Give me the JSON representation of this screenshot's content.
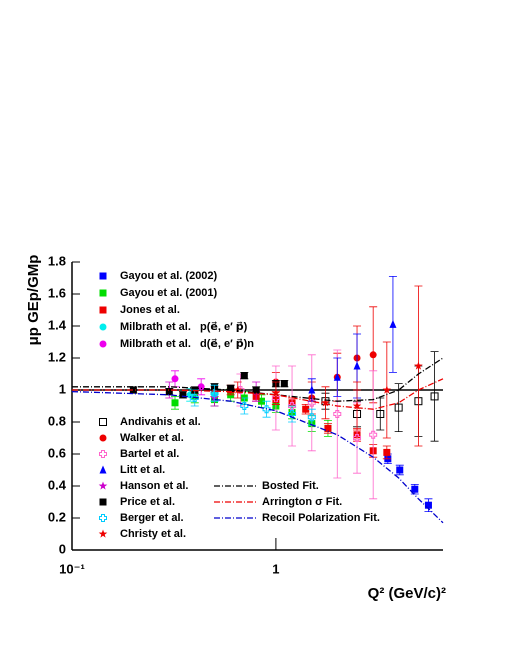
{
  "chart_data": {
    "type": "scatter",
    "xlabel": "Q² (GeV/c)²",
    "ylabel": "μp GEp/GMp",
    "xlog": true,
    "xlim": [
      0.1,
      6.6
    ],
    "ylim": [
      0,
      1.8
    ],
    "xticks": [
      {
        "value": 0.1,
        "label": "10⁻¹"
      },
      1
    ],
    "yticks": [
      0,
      0.2,
      0.4,
      0.6,
      0.8,
      1,
      1.2,
      1.4,
      1.6,
      1.8
    ],
    "reference_line": 1,
    "series": [
      {
        "name": "Gayou et al. (2002)",
        "color": "#0000ff",
        "marker": "square",
        "x": [
          3.54,
          4.05,
          4.8,
          5.6
        ],
        "values": [
          0.57,
          0.5,
          0.38,
          0.28
        ],
        "errors": [
          0.03,
          0.03,
          0.03,
          0.04
        ]
      },
      {
        "name": "Gayou et al. (2001)",
        "color": "#00dd00",
        "marker": "square",
        "x": [
          0.32,
          0.4,
          0.5,
          0.6,
          0.7,
          0.85,
          1.0,
          1.2,
          1.5,
          1.8
        ],
        "values": [
          0.92,
          0.96,
          0.94,
          0.97,
          0.95,
          0.93,
          0.9,
          0.86,
          0.79,
          0.76
        ],
        "errors": [
          0.04,
          0.04,
          0.04,
          0.04,
          0.04,
          0.04,
          0.04,
          0.04,
          0.05,
          0.05
        ]
      },
      {
        "name": "Jones et al.",
        "color": "#ee0000",
        "marker": "square",
        "x": [
          0.5,
          0.6,
          0.8,
          1.0,
          1.2,
          1.4,
          1.8,
          2.5,
          3.0,
          3.5
        ],
        "values": [
          0.99,
          1.0,
          0.96,
          0.94,
          0.92,
          0.88,
          0.76,
          0.72,
          0.62,
          0.61
        ],
        "errors": [
          0.03,
          0.03,
          0.03,
          0.03,
          0.03,
          0.03,
          0.03,
          0.04,
          0.04,
          0.04
        ]
      },
      {
        "name": "Milbrath et al.",
        "reaction": "p(e⃗, e′ p⃗)",
        "color": "#00eeee",
        "marker": "circle",
        "x": [
          0.38,
          0.5
        ],
        "values": [
          0.97,
          0.97
        ],
        "errors": [
          0.04,
          0.04
        ]
      },
      {
        "name": "Milbrath et al.",
        "reaction": "d(e⃗, e′ p⃗)n",
        "color": "#ee00ee",
        "marker": "circle",
        "x": [
          0.32,
          0.43
        ],
        "values": [
          1.07,
          1.02
        ],
        "errors": [
          0.05,
          0.05
        ]
      },
      {
        "name": "Andivahis et al.",
        "color": "#000000",
        "marker": "open-square",
        "x": [
          1.75,
          2.5,
          3.25,
          4.0,
          5.0,
          6.0
        ],
        "values": [
          0.93,
          0.85,
          0.85,
          0.89,
          0.93,
          0.96
        ],
        "errors": [
          0.05,
          0.08,
          0.1,
          0.15,
          0.22,
          0.28
        ]
      },
      {
        "name": "Walker et al.",
        "color": "#ee0000",
        "marker": "circle",
        "x": [
          1.0,
          1.5,
          2.0,
          2.5,
          3.0
        ],
        "values": [
          1.05,
          0.95,
          1.08,
          1.2,
          1.22
        ],
        "errors": [
          0.06,
          0.1,
          0.15,
          0.2,
          0.3
        ]
      },
      {
        "name": "Bartel et al.",
        "color": "#ff66cc",
        "marker": "open-cross",
        "x": [
          0.67,
          1.0,
          1.2,
          1.5,
          2.0,
          2.5,
          3.0
        ],
        "values": [
          1.0,
          0.95,
          0.9,
          0.92,
          0.85,
          0.7,
          0.72
        ],
        "errors": [
          0.1,
          0.2,
          0.25,
          0.3,
          0.4,
          0.22,
          0.4
        ]
      },
      {
        "name": "Litt et al.",
        "color": "#0000ff",
        "marker": "triangle",
        "x": [
          1.5,
          2.0,
          2.5,
          3.75
        ],
        "values": [
          1.0,
          1.08,
          1.15,
          1.41
        ],
        "errors": [
          0.07,
          0.12,
          0.2,
          0.3
        ]
      },
      {
        "name": "Hanson et al.",
        "color": "#cc00cc",
        "marker": "star",
        "x": [
          0.3,
          0.5,
          0.8
        ],
        "values": [
          1.0,
          0.95,
          0.99
        ],
        "errors": [
          0.05,
          0.05,
          0.06
        ]
      },
      {
        "name": "Price et al.",
        "color": "#000000",
        "marker": "square",
        "x": [
          0.2,
          0.3,
          0.35,
          0.4,
          0.5,
          0.6,
          0.7,
          0.8,
          1.0,
          1.1
        ],
        "values": [
          1.0,
          0.99,
          0.97,
          1.0,
          1.02,
          1.01,
          1.09,
          1.0,
          1.04,
          1.04
        ],
        "errors": [
          0.02,
          0.02,
          0.02,
          0.02,
          0.02,
          0.02,
          0.02,
          0.02,
          0.02,
          0.02
        ]
      },
      {
        "name": "Berger et al.",
        "color": "#00ccff",
        "marker": "open-cross",
        "x": [
          0.4,
          0.5,
          0.7,
          0.9,
          1.2,
          1.5
        ],
        "values": [
          0.95,
          0.98,
          0.9,
          0.88,
          0.85,
          0.83
        ],
        "errors": [
          0.05,
          0.05,
          0.05,
          0.05,
          0.05,
          0.05
        ]
      },
      {
        "name": "Christy et al.",
        "color": "#ee0000",
        "marker": "star",
        "x": [
          0.65,
          1.0,
          1.75,
          2.5,
          3.5,
          5.0
        ],
        "values": [
          1.0,
          0.98,
          0.92,
          0.9,
          1.0,
          1.15
        ],
        "errors": [
          0.05,
          0.07,
          0.1,
          0.15,
          0.3,
          0.5
        ]
      }
    ],
    "fits": [
      {
        "name": "Bosted Fit.",
        "color": "#000000",
        "x": [
          0.1,
          0.3,
          0.6,
          1,
          2,
          3,
          4,
          5,
          6.6
        ],
        "y": [
          1.02,
          1.02,
          1.0,
          0.97,
          0.93,
          0.94,
          1.0,
          1.1,
          1.2
        ]
      },
      {
        "name": "Arrington σ Fit.",
        "color": "#ee0000",
        "x": [
          0.1,
          0.3,
          0.6,
          1,
          2,
          3,
          4,
          5,
          6.6
        ],
        "y": [
          1.0,
          1.0,
          0.99,
          0.97,
          0.9,
          0.88,
          0.92,
          1.0,
          1.07
        ]
      },
      {
        "name": "Recoil Polarization Fit.",
        "color": "#0000cc",
        "x": [
          0.1,
          0.3,
          0.6,
          1,
          2,
          3,
          4,
          5,
          6.6
        ],
        "y": [
          0.99,
          0.97,
          0.93,
          0.87,
          0.72,
          0.58,
          0.45,
          0.32,
          0.17
        ]
      }
    ]
  }
}
